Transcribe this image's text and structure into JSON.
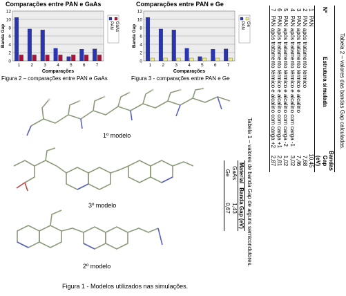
{
  "chart_data": [
    {
      "type": "bar",
      "title": "Comparações entre PAN e GaAs",
      "xlabel": "Comparações",
      "ylabel": "Banda Gap",
      "categories": [
        "1",
        "2",
        "3",
        "4",
        "5",
        "6",
        "7"
      ],
      "series": [
        {
          "name": "PAN",
          "values": [
            10.45,
            7.68,
            7.46,
            3.02,
            1.02,
            2.81,
            2.87
          ],
          "color": "#2a35b0"
        },
        {
          "name": "GaAs",
          "values": [
            1.43,
            1.43,
            1.43,
            1.43,
            1.43,
            1.43,
            1.43
          ],
          "color": "#a8123a"
        }
      ],
      "ylim": [
        0,
        12
      ],
      "yticks": [
        "0",
        "2",
        "4",
        "6",
        "8",
        "10",
        "12"
      ],
      "grid": true,
      "legend": "right"
    },
    {
      "type": "bar",
      "title": "Comparações entre PAN e Ge",
      "xlabel": "Comparações",
      "ylabel": "Banda Gap",
      "categories": [
        "1",
        "2",
        "3",
        "4",
        "5",
        "6",
        "7"
      ],
      "series": [
        {
          "name": "PAN",
          "values": [
            10.45,
            7.68,
            7.46,
            3.02,
            1.02,
            2.81,
            2.87
          ],
          "color": "#2a35b0"
        },
        {
          "name": "Ge",
          "values": [
            0.67,
            0.67,
            0.67,
            0.67,
            0.67,
            0.67,
            0.67
          ],
          "color": "#eeee88"
        }
      ],
      "ylim": [
        0,
        12
      ],
      "yticks": [
        "0",
        "2",
        "4",
        "6",
        "8",
        "10",
        "12"
      ],
      "grid": true,
      "legend": "right"
    }
  ],
  "captions": {
    "fig2": "Figura 2 – comparações entre PAN e GaAs",
    "fig3": "Figura 3 - comparações entre PAN e Ge",
    "fig1_prefix": "Figura 1",
    "fig1_rest": " - Modelos utilizados nas simulações."
  },
  "models": {
    "m1": "1º modelo",
    "m2": "2º modelo",
    "m3": "3º modelo"
  },
  "table1": {
    "caption": "Tabela 1 – valores de banda Gap de alguns semicondutores.",
    "headers": [
      "Material",
      "Banda Gap (eV)"
    ],
    "rows": [
      [
        "GaAs",
        "1,43"
      ],
      [
        "Ge",
        "0,67"
      ]
    ]
  },
  "table2": {
    "caption": "Tabela 2 – valores das bandas Gap calculadas.",
    "headers": [
      "Nº",
      "Estrutura simulada",
      "Bandas Gap (eV)"
    ],
    "rows": [
      [
        "1",
        "PAN",
        "10,45"
      ],
      [
        "2",
        "PAN após tratamento térmico",
        "7,68"
      ],
      [
        "3",
        "PAN após tratamento térmico e alcalino",
        "7,46"
      ],
      [
        "4",
        "PAN após tratamento térmico e alcalino com carga -1",
        "3,02"
      ],
      [
        "5",
        "PAN após tratamento térmico e alcalino com carga -2",
        "1,02"
      ],
      [
        "6",
        "PAN após tratamento térmico e alcalino com carga +1",
        "2,81"
      ],
      [
        "7",
        "PAN após tratamento térmico e alcalino com carga +2",
        "2,87"
      ]
    ]
  }
}
